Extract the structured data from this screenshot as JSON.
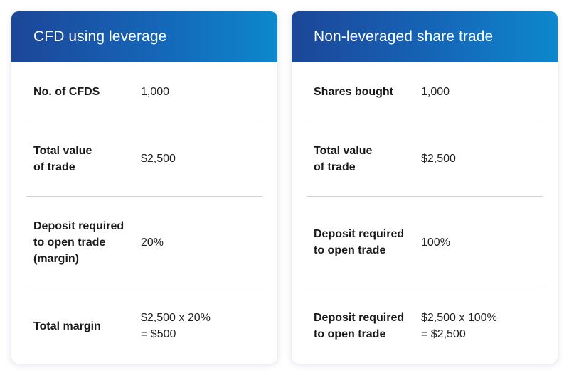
{
  "cards": [
    {
      "title": "CFD using leverage",
      "rows": [
        {
          "label": "No. of CFDS",
          "value": "1,000"
        },
        {
          "label": "Total value\nof trade",
          "value": "$2,500"
        },
        {
          "label": "Deposit required\nto open trade\n(margin)",
          "value": "20%"
        },
        {
          "label": "Total margin",
          "value": "$2,500 x 20%\n= $500"
        }
      ]
    },
    {
      "title": "Non-leveraged share trade",
      "rows": [
        {
          "label": "Shares bought",
          "value": "1,000"
        },
        {
          "label": "Total value\nof trade",
          "value": "$2,500"
        },
        {
          "label": "Deposit required\nto open trade",
          "value": "100%"
        },
        {
          "label": "Deposit required\nto open trade",
          "value": "$2,500 x 100%\n= $2,500"
        }
      ]
    }
  ],
  "colors": {
    "header_gradient_start": "#1c4698",
    "header_gradient_end": "#0d88cc",
    "divider": "#cfcfcf"
  }
}
